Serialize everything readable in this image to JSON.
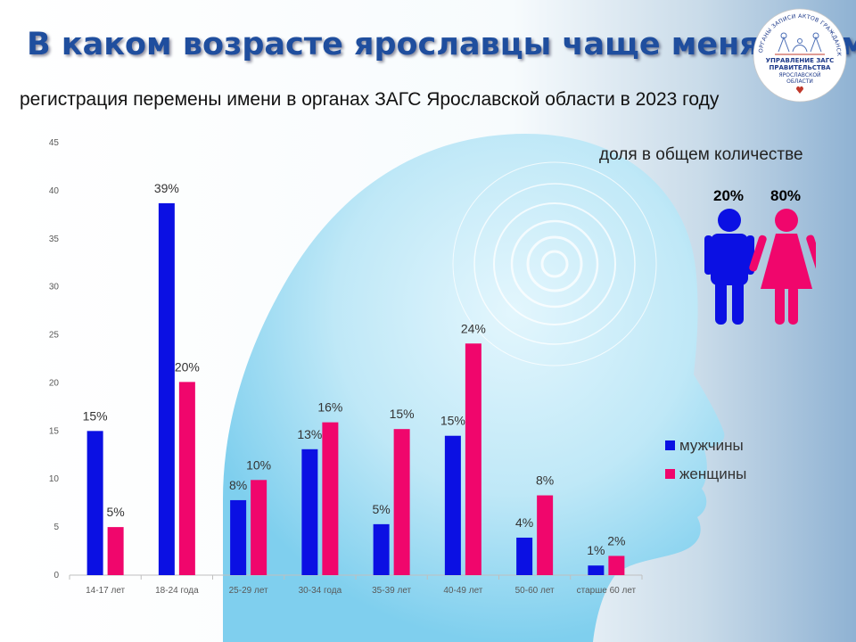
{
  "header": {
    "title": "В каком возрасте ярославцы чаще меняют имя:",
    "subtitle": "регистрация перемены имени в органах ЗАГС Ярославской области в 2023 году"
  },
  "seal": {
    "ring_text": "ОРГАНЫ ЗАПИСИ АКТОВ ГРАЖДАНСКОГО СОСТОЯНИЯ",
    "line1": "УПРАВЛЕНИЕ ЗАГС",
    "line2": "ПРАВИТЕЛЬСТВА",
    "line3": "ЯРОСЛАВСКОЙ",
    "line4": "ОБЛАСТИ"
  },
  "share": {
    "title": "доля в общем количестве",
    "male": "20%",
    "female": "80%",
    "icons": [
      "male-person-icon",
      "female-person-icon"
    ]
  },
  "colors": {
    "male": "#0b10e3",
    "female": "#f0066c"
  },
  "chart_data": {
    "type": "bar",
    "categories": [
      "14-17 лет",
      "18-24 года",
      "25-29 лет",
      "30-34 года",
      "35-39 лет",
      "40-49 лет",
      "50-60 лет",
      "старше 60 лет"
    ],
    "series": [
      {
        "name": "мужчины",
        "values": [
          15,
          38.7,
          7.8,
          13.1,
          5.3,
          14.5,
          3.9,
          1
        ],
        "labels": [
          "15%",
          "39%",
          "8%",
          "13%",
          "5%",
          "15%",
          "4%",
          "1%"
        ]
      },
      {
        "name": "женщины",
        "values": [
          5,
          20.1,
          9.9,
          15.9,
          15.2,
          24.1,
          8.3,
          2
        ],
        "labels": [
          "5%",
          "20%",
          "10%",
          "16%",
          "15%",
          "24%",
          "8%",
          "2%"
        ]
      }
    ],
    "ylim": [
      0,
      45
    ],
    "yticks": [
      "0",
      "5",
      "10",
      "15",
      "20",
      "25",
      "30",
      "35",
      "40",
      "45"
    ],
    "legend_position": "right"
  }
}
